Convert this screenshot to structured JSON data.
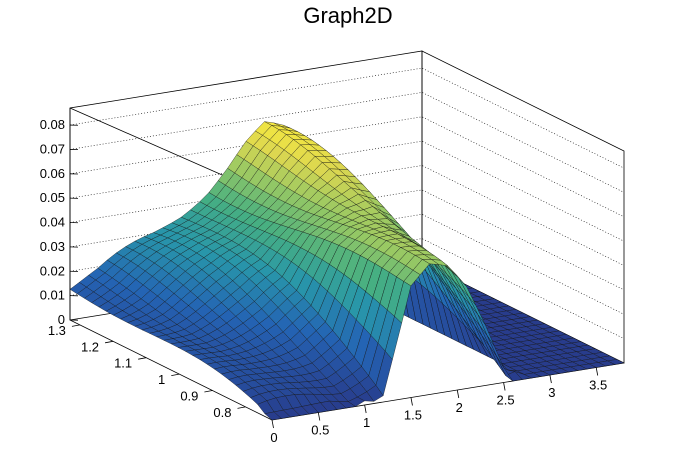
{
  "chart_data": {
    "type": "surface3d",
    "title": "Graph2D",
    "colormap": "viridis-like (blue to yellow)",
    "grid": true,
    "x": {
      "label": "",
      "range": [
        0,
        3.8
      ],
      "ticks": [
        "0",
        "0.5",
        "1",
        "1.5",
        "2",
        "2.5",
        "3",
        "3.5"
      ],
      "tick_values": [
        0,
        0.5,
        1,
        1.5,
        2,
        2.5,
        3,
        3.5
      ]
    },
    "y": {
      "label": "",
      "range": [
        0.72,
        1.33
      ],
      "ticks": [
        "0.8",
        "0.9",
        "1",
        "1.1",
        "1.2",
        "1.3"
      ],
      "tick_values": [
        0.8,
        0.9,
        1.0,
        1.1,
        1.2,
        1.3
      ]
    },
    "z": {
      "label": "",
      "range": [
        0,
        0.087
      ],
      "ticks": [
        "0",
        "0.01",
        "0.02",
        "0.03",
        "0.04",
        "0.05",
        "0.06",
        "0.07",
        "0.08"
      ],
      "tick_values": [
        0,
        0.01,
        0.02,
        0.03,
        0.04,
        0.05,
        0.06,
        0.07,
        0.08
      ]
    },
    "surface_profile": {
      "x": [
        0,
        0.3,
        0.6,
        0.9,
        1.2,
        1.5,
        1.7,
        1.9,
        2.1,
        2.3,
        2.5,
        2.6,
        2.7,
        2.8,
        3.2,
        3.8
      ],
      "z_back_edge": [
        0.014,
        0.018,
        0.024,
        0.03,
        0.037,
        0.045,
        0.052,
        0.06,
        0.066,
        0.064,
        0.052,
        0.04,
        0.022,
        0,
        0,
        0
      ],
      "z_front_edge": [
        0,
        0,
        0,
        0,
        0.005,
        0.046,
        0.052,
        0.049,
        0.04,
        0.025,
        0.008,
        0,
        0,
        0,
        0,
        0
      ],
      "y_peak_drift": "ridge rises with x, peaks near x≈2.1, collapses to 0 beyond x≈2.6"
    }
  }
}
